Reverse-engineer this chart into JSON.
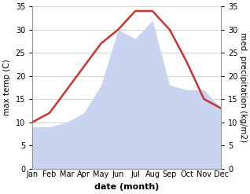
{
  "months": [
    "Jan",
    "Feb",
    "Mar",
    "Apr",
    "May",
    "Jun",
    "Jul",
    "Aug",
    "Sep",
    "Oct",
    "Nov",
    "Dec"
  ],
  "temperature": [
    10,
    12,
    17,
    22,
    27,
    30,
    34,
    34,
    30,
    23,
    15,
    13
  ],
  "precipitation": [
    9,
    9,
    10,
    12,
    18,
    30,
    28,
    32,
    18,
    17,
    17,
    13
  ],
  "temp_color": "#cc3333",
  "precip_fill_color": "#c8d4f0",
  "ylabel_left": "max temp (C)",
  "ylabel_right": "med. precipitation (kg/m2)",
  "xlabel": "date (month)",
  "ylim": [
    0,
    35
  ],
  "yticks": [
    0,
    5,
    10,
    15,
    20,
    25,
    30,
    35
  ],
  "spine_color": "#999999",
  "grid_color": "#cccccc",
  "temp_linewidth": 1.8,
  "ylabel_fontsize": 7.5,
  "xlabel_fontsize": 8,
  "tick_fontsize": 7,
  "fig_bg": "#ffffff"
}
